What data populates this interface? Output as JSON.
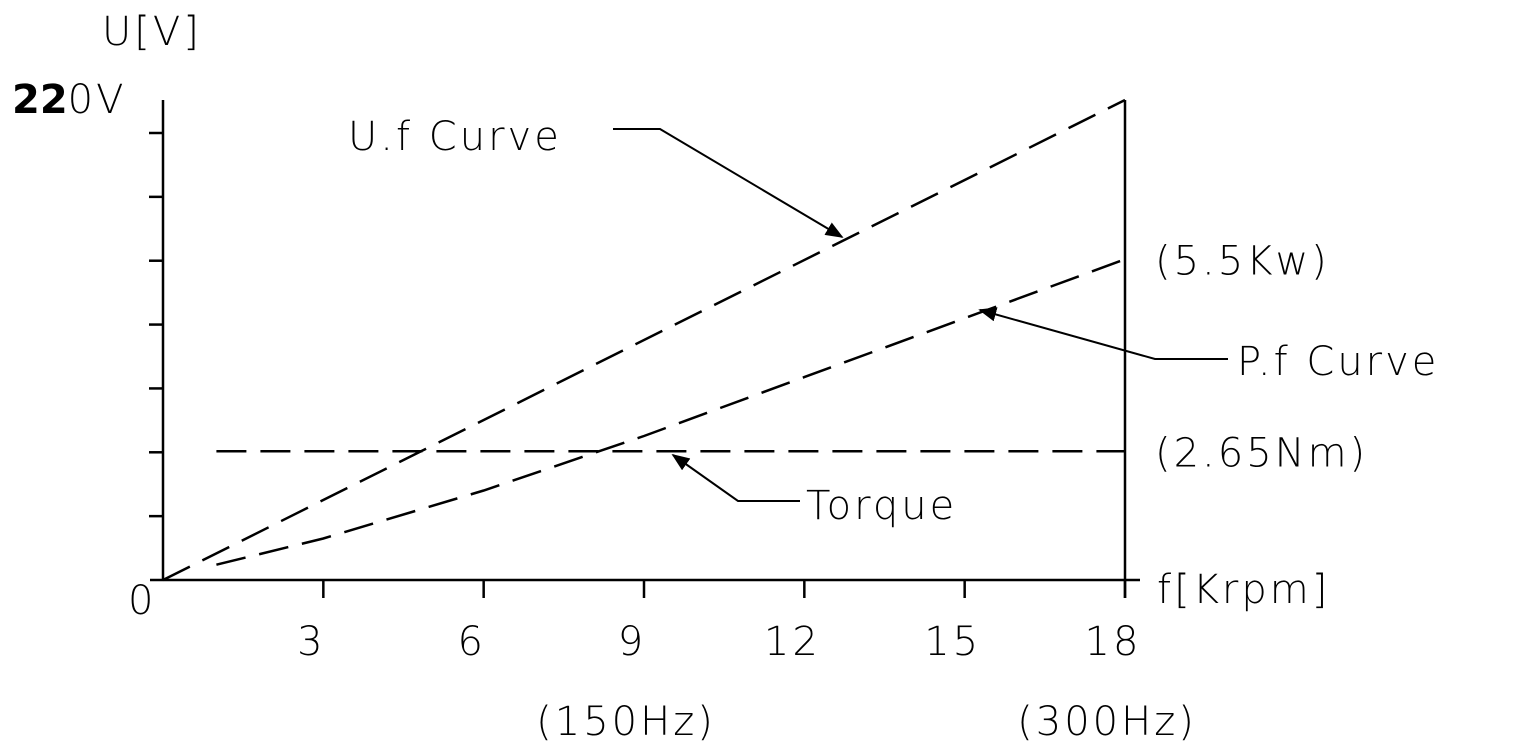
{
  "chart_data": {
    "type": "line",
    "title": "",
    "ylabel": "U[V]",
    "y_max_label_bold": "22",
    "y_max_label_rest": "0V",
    "origin_label": "0",
    "xlabel": "f[Krpm]",
    "xlim": [
      0,
      18
    ],
    "ylim": [
      0,
      220
    ],
    "x_ticks": [
      3,
      6,
      9,
      12,
      15,
      18
    ],
    "x_tick_labels": [
      "3",
      "6",
      "9",
      "12",
      "15",
      "18"
    ],
    "y_minor_tick_count": 7,
    "frequency_labels": [
      {
        "x": 9,
        "text": "(150Hz)"
      },
      {
        "x": 18,
        "text": "(300Hz)"
      }
    ],
    "right_axis_labels": [
      {
        "y": 147,
        "text": "(5.5Kw)"
      },
      {
        "y": 59,
        "text": "(2.65Nm)"
      }
    ],
    "series": [
      {
        "name": "U.f Curve",
        "x": [
          0,
          18
        ],
        "y": [
          0,
          220
        ]
      },
      {
        "name": "P.f Curve",
        "x": [
          1,
          3,
          6,
          9,
          12,
          15,
          18
        ],
        "y": [
          7,
          19,
          41,
          66,
          93,
          120,
          147
        ]
      },
      {
        "name": "Torque",
        "x": [
          1,
          18
        ],
        "y": [
          59,
          59
        ]
      }
    ],
    "annotations": [
      {
        "series": "U.f Curve",
        "text": "U.f Curve"
      },
      {
        "series": "P.f Curve",
        "text": "P.f Curve"
      },
      {
        "series": "Torque",
        "text": "Torque"
      }
    ]
  }
}
